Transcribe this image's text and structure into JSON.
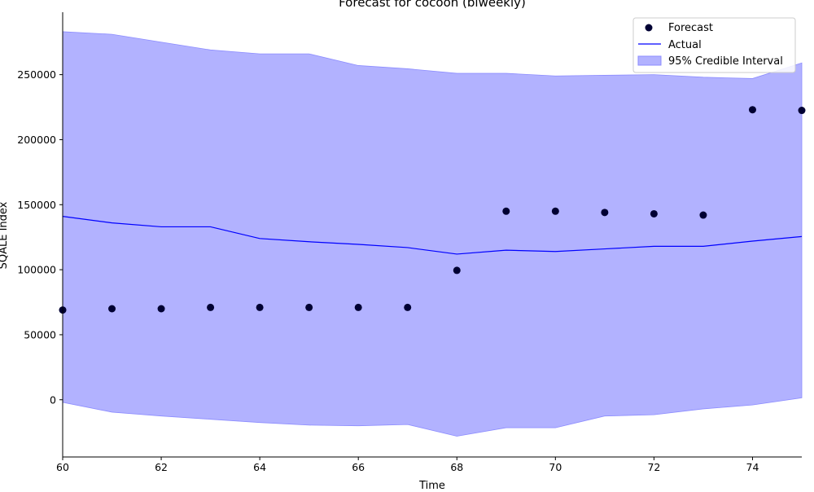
{
  "chart_data": {
    "type": "line",
    "title": "Forecast for cocoon (biweekly)",
    "xlabel": "Time",
    "ylabel": "SQALE Index",
    "xlim": [
      60,
      75
    ],
    "ylim": [
      -44000,
      298000
    ],
    "x_ticks": [
      60,
      62,
      64,
      66,
      68,
      70,
      72,
      74
    ],
    "y_ticks": [
      0,
      50000,
      100000,
      150000,
      200000,
      250000
    ],
    "legend": {
      "placement": "upper-right",
      "entries": [
        "Forecast",
        "Actual",
        "95% Credible Interval"
      ]
    },
    "x": [
      60,
      61,
      62,
      63,
      64,
      65,
      66,
      67,
      68,
      69,
      70,
      71,
      72,
      73,
      74,
      75
    ],
    "series": [
      {
        "name": "Forecast",
        "kind": "scatter",
        "values": [
          69000,
          70000,
          70000,
          71000,
          71000,
          71000,
          71000,
          71000,
          99500,
          145000,
          145000,
          144000,
          143000,
          142000,
          223000,
          222500
        ]
      },
      {
        "name": "Actual",
        "kind": "line",
        "values": [
          141000,
          136000,
          133000,
          133000,
          124000,
          121500,
          119500,
          117000,
          112000,
          115000,
          114000,
          116000,
          118000,
          118000,
          122000,
          125500
        ]
      }
    ],
    "interval": {
      "name": "95% Credible Interval",
      "upper": [
        283000,
        281000,
        275000,
        269000,
        266000,
        266000,
        257000,
        254500,
        251000,
        251000,
        249000,
        249500,
        250000,
        248000,
        247000,
        259000
      ],
      "lower": [
        -2000,
        -9500,
        -12500,
        -15000,
        -17500,
        -19500,
        -20000,
        -19000,
        -28000,
        -21500,
        -21500,
        -12500,
        -11500,
        -7000,
        -4000,
        1500
      ]
    },
    "colors": {
      "forecast": "#000033",
      "actual": "#0000ff",
      "interval_fill": "#b2b2ff",
      "interval_edge": "#8c8cff"
    }
  }
}
